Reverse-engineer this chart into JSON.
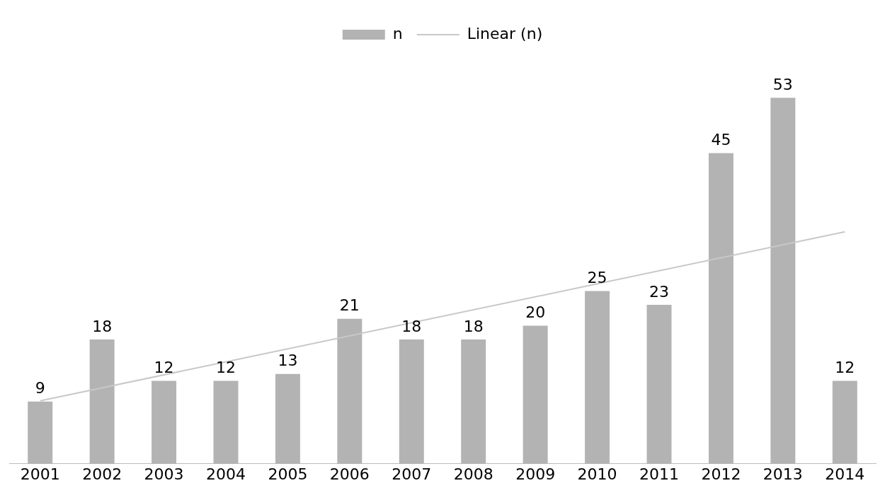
{
  "chart_data": {
    "type": "bar",
    "categories": [
      "2001",
      "2002",
      "2003",
      "2004",
      "2005",
      "2006",
      "2007",
      "2008",
      "2009",
      "2010",
      "2011",
      "2012",
      "2013",
      "2014"
    ],
    "series": [
      {
        "name": "n",
        "color": "#b3b3b3",
        "values": [
          9,
          18,
          12,
          12,
          13,
          21,
          18,
          18,
          20,
          25,
          23,
          45,
          53,
          12
        ],
        "value_labels": [
          "9",
          "18",
          "12",
          "12",
          "13",
          "21",
          "18",
          "18",
          "20",
          "25",
          "23",
          "45",
          "53",
          "12"
        ]
      },
      {
        "name": "Linear (n)",
        "type": "line",
        "color": "#c8c8c8",
        "values": [
          9.1,
          null,
          null,
          null,
          null,
          null,
          null,
          null,
          null,
          null,
          null,
          null,
          null,
          33.6
        ]
      }
    ],
    "legend": "top",
    "grid": false,
    "tick_labels": "x"
  }
}
